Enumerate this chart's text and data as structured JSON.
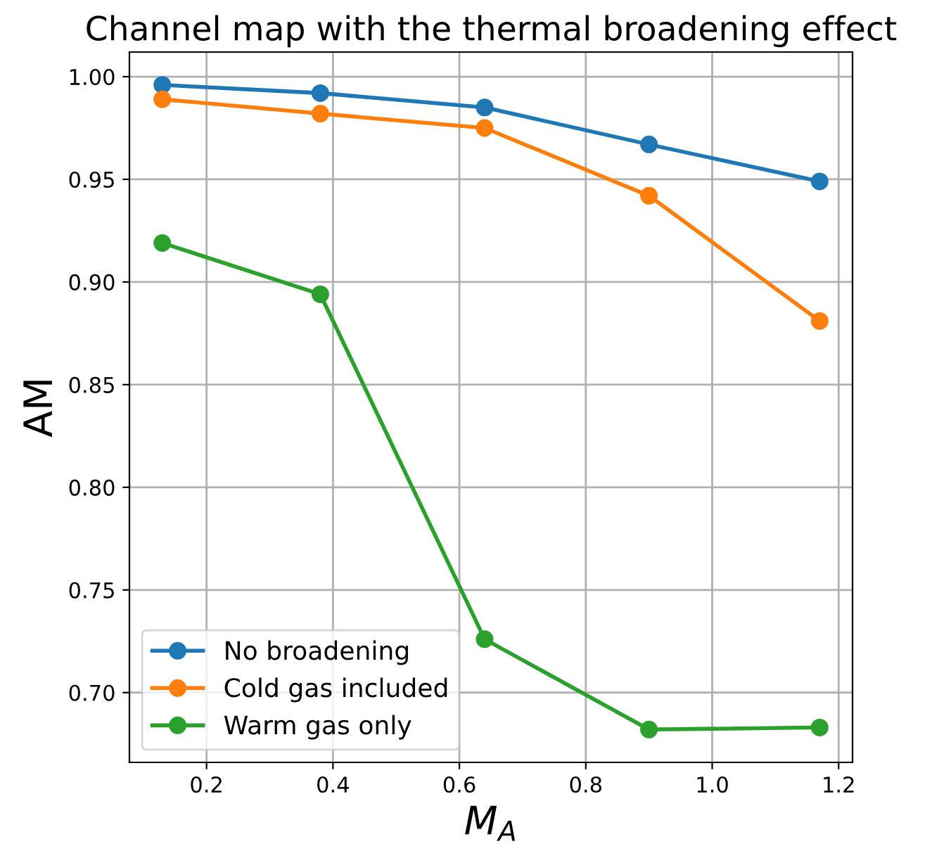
{
  "chart_data": {
    "type": "line",
    "title": "Channel map with the thermal broadening effect",
    "xlabel": "M$_{A}$",
    "ylabel": "AM",
    "x": [
      0.13,
      0.38,
      0.64,
      0.9,
      1.17
    ],
    "series": [
      {
        "name": "No broadening",
        "color": "#1f77b4",
        "values": [
          0.996,
          0.992,
          0.985,
          0.967,
          0.949
        ]
      },
      {
        "name": "Cold gas included",
        "color": "#ff7f0e",
        "values": [
          0.989,
          0.982,
          0.975,
          0.942,
          0.881
        ]
      },
      {
        "name": "Warm gas only",
        "color": "#2ca02c",
        "values": [
          0.919,
          0.894,
          0.726,
          0.682,
          0.683
        ]
      }
    ],
    "xlim": [
      0.078,
      1.222
    ],
    "ylim": [
      0.666,
      1.012
    ],
    "xticks": [
      {
        "value": 0.2,
        "label": "0.2"
      },
      {
        "value": 0.4,
        "label": "0.4"
      },
      {
        "value": 0.6,
        "label": "0.6"
      },
      {
        "value": 0.8,
        "label": "0.8"
      },
      {
        "value": 1.0,
        "label": "1.0"
      },
      {
        "value": 1.2,
        "label": "1.2"
      }
    ],
    "yticks": [
      {
        "value": 0.7,
        "label": "0.70"
      },
      {
        "value": 0.75,
        "label": "0.75"
      },
      {
        "value": 0.8,
        "label": "0.80"
      },
      {
        "value": 0.85,
        "label": "0.85"
      },
      {
        "value": 0.9,
        "label": "0.90"
      },
      {
        "value": 0.95,
        "label": "0.95"
      },
      {
        "value": 1.0,
        "label": "1.00"
      }
    ],
    "grid": true,
    "legend": "bottom left",
    "marker": "circle",
    "line_style": "solid"
  }
}
